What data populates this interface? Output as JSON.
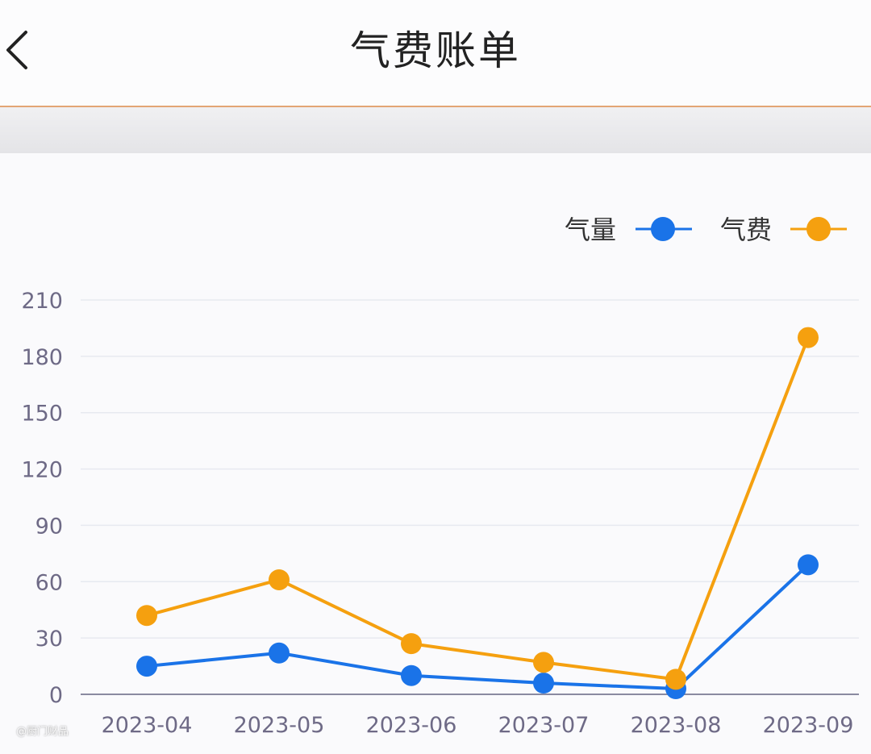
{
  "header": {
    "title": "气费账单",
    "back_icon": "chevron-left-icon"
  },
  "colors": {
    "series_1": "#1a73e8",
    "series_2": "#f5a00f",
    "grid": "#e7e9f0",
    "axis": "#8a8aa0",
    "tick_text": "#6e6a86",
    "header_divider": "#e3a574"
  },
  "chart_data": {
    "type": "line",
    "title": "",
    "xlabel": "",
    "ylabel": "",
    "x": [
      "2023-04",
      "2023-05",
      "2023-06",
      "2023-07",
      "2023-08",
      "2023-09"
    ],
    "ylim": [
      0,
      210
    ],
    "yticks": [
      0,
      30,
      60,
      90,
      120,
      150,
      180,
      210
    ],
    "grid": true,
    "legend_position": "top-right",
    "series": [
      {
        "name": "气量",
        "values": [
          15,
          22,
          10,
          6,
          3,
          69
        ]
      },
      {
        "name": "气费",
        "values": [
          42,
          61,
          27,
          17,
          8,
          190
        ]
      }
    ]
  },
  "watermark": "@厨门财品"
}
